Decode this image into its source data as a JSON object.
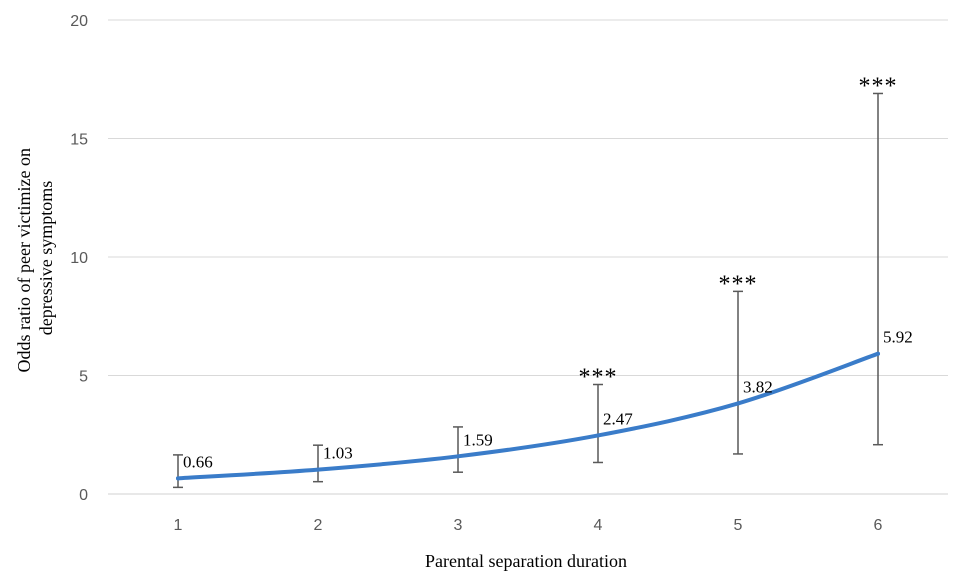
{
  "chart_data": {
    "type": "line",
    "title": "",
    "xlabel": "Parental separation duration",
    "ylabel_lines": [
      "Odds ratio of peer victimize on",
      "depressive symptoms"
    ],
    "x": [
      1,
      2,
      3,
      4,
      5,
      6
    ],
    "x_tick_labels": [
      "1",
      "2",
      "3",
      "4",
      "5",
      "6"
    ],
    "y_ticks": [
      0,
      5,
      10,
      15,
      20
    ],
    "y_tick_labels": [
      "0",
      "5",
      "10",
      "15",
      "20"
    ],
    "ylim": [
      0,
      20
    ],
    "grid": "horizontal",
    "legend": "none",
    "series": [
      {
        "values": [
          0.66,
          1.03,
          1.59,
          2.47,
          3.82,
          5.92
        ],
        "value_labels": [
          "0.66",
          "1.03",
          "1.59",
          "2.47",
          "3.82",
          "5.92"
        ],
        "ci_lower": [
          0.28,
          0.52,
          0.92,
          1.33,
          1.69,
          2.08
        ],
        "ci_upper": [
          1.65,
          2.06,
          2.83,
          4.62,
          8.55,
          16.9
        ],
        "significance": [
          "",
          "",
          "",
          "***",
          "***",
          "***"
        ],
        "color": "#3a7cc9"
      }
    ],
    "colors": {
      "line": "#3a7cc9",
      "error_bar": "#595959",
      "grid": "#d9d9d9",
      "axis": "#d9d9d9",
      "tick_text": "#595959"
    }
  }
}
